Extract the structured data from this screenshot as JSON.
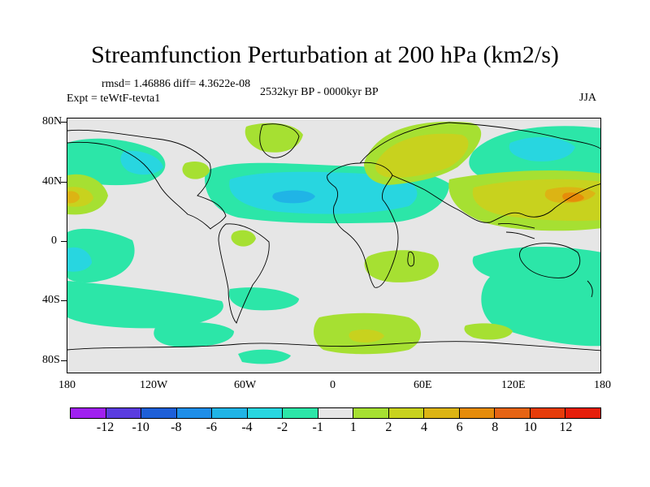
{
  "title": "Streamfunction Perturbation at 200 hPa (km2/s)",
  "stats": "rmsd= 1.46886 diff= 4.3622e-08",
  "experiment": "Expt = teWtF-tevta1",
  "period": "2532kyr BP - 0000kyr BP",
  "season": "JJA",
  "lat_labels": [
    "80N",
    "40N",
    "0",
    "40S",
    "80S"
  ],
  "lon_labels": [
    "180",
    "120W",
    "60W",
    "0",
    "60E",
    "120E",
    "180"
  ],
  "colorbar": {
    "labels": [
      "-12",
      "-10",
      "-8",
      "-6",
      "-4",
      "-2",
      "-1",
      "1",
      "2",
      "4",
      "6",
      "8",
      "10",
      "12"
    ],
    "colors": [
      "#a020f0",
      "#5a3ce0",
      "#1e5fd8",
      "#1e8ee8",
      "#20b4e6",
      "#28d6e0",
      "#2ce6a8",
      "#e6e6e6",
      "#a6e032",
      "#c8d21e",
      "#dcb414",
      "#e68c0a",
      "#e66414",
      "#e63c0a",
      "#e61e0a"
    ]
  },
  "fill_colors": {
    "background": "#e6e6e6",
    "neg1": "#2ce6a8",
    "neg2": "#28d6e0",
    "neg4": "#20b4e6",
    "pos1": "#a6e032",
    "pos2": "#c8d21e",
    "pos4": "#dcb414",
    "pos6": "#e68c0a"
  }
}
